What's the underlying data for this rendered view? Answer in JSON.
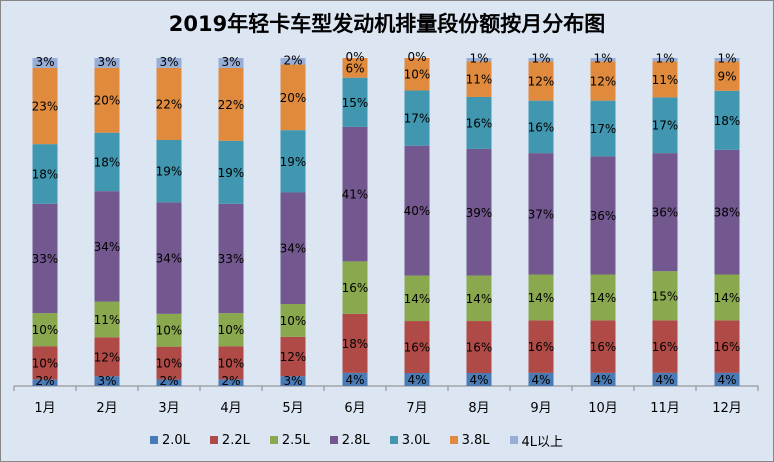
{
  "chart_data": {
    "type": "bar",
    "stacked": true,
    "percent": true,
    "title": "2019年轻卡车型发动机排量段份额按月分布图",
    "xlabel": "",
    "ylabel": "",
    "ylim": [
      0,
      100
    ],
    "grid": false,
    "legend_position": "bottom",
    "categories": [
      "1月",
      "2月",
      "3月",
      "4月",
      "5月",
      "6月",
      "7月",
      "8月",
      "9月",
      "10月",
      "11月",
      "12月"
    ],
    "series": [
      {
        "name": "2.0L",
        "color": "#4a7bb4",
        "values": [
          2,
          3,
          2,
          2,
          3,
          4,
          4,
          4,
          4,
          4,
          4,
          4
        ]
      },
      {
        "name": "2.2L",
        "color": "#b04a47",
        "values": [
          10,
          12,
          10,
          10,
          12,
          18,
          16,
          16,
          16,
          16,
          16,
          16
        ]
      },
      {
        "name": "2.5L",
        "color": "#8aa84e",
        "values": [
          10,
          11,
          10,
          10,
          10,
          16,
          14,
          14,
          14,
          14,
          15,
          14
        ]
      },
      {
        "name": "2.8L",
        "color": "#72588f",
        "values": [
          33,
          34,
          34,
          33,
          34,
          41,
          40,
          39,
          37,
          36,
          36,
          38
        ]
      },
      {
        "name": "3.0L",
        "color": "#4197b0",
        "values": [
          18,
          18,
          19,
          19,
          19,
          15,
          17,
          16,
          16,
          17,
          17,
          18
        ]
      },
      {
        "name": "3.8L",
        "color": "#e08a3e",
        "values": [
          23,
          20,
          22,
          22,
          20,
          6,
          10,
          11,
          12,
          12,
          11,
          9
        ]
      },
      {
        "name": "4L以上",
        "color": "#97add6",
        "values": [
          3,
          3,
          3,
          3,
          2,
          0,
          0,
          1,
          1,
          1,
          1,
          1
        ]
      }
    ]
  }
}
